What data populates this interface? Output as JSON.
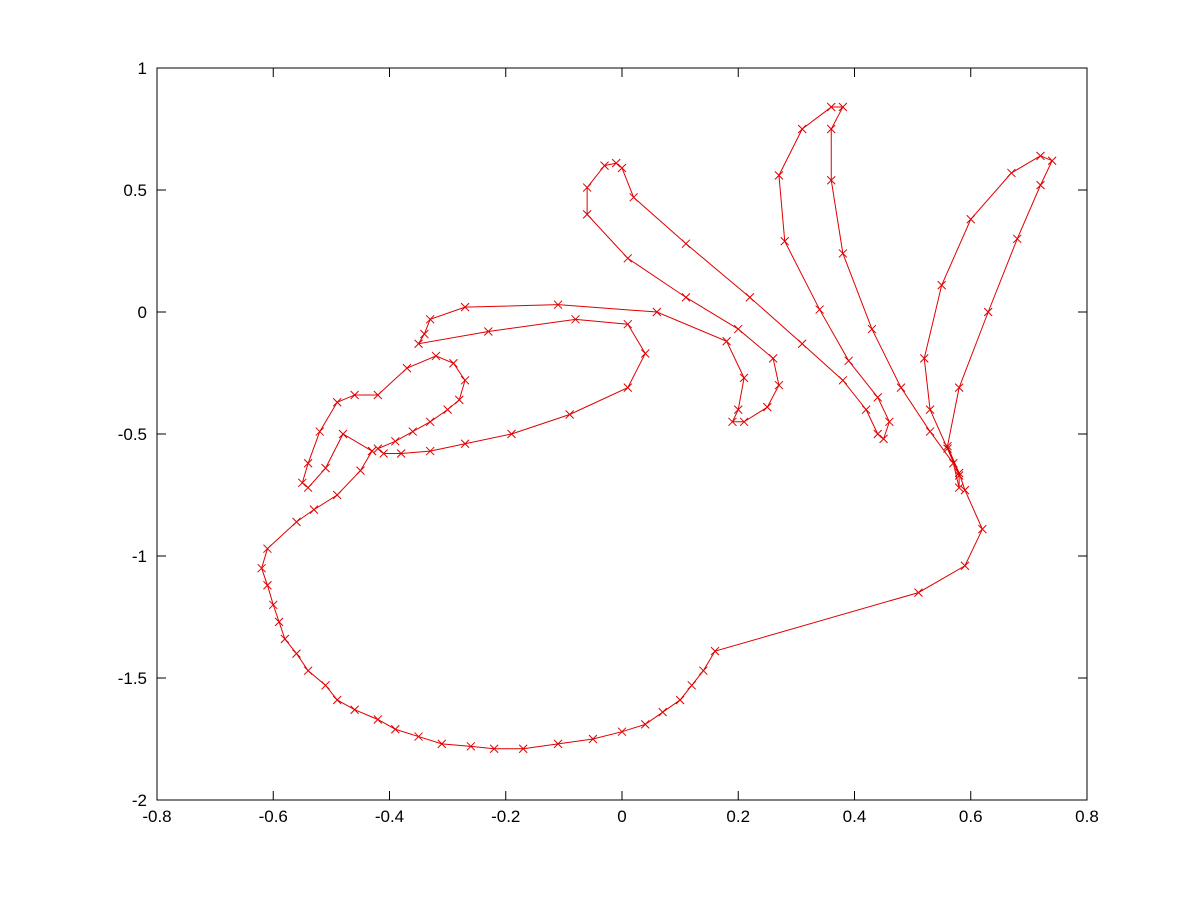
{
  "chart_data": {
    "type": "line",
    "marker": "x",
    "color": "#e00000",
    "x": [
      -0.43,
      -0.48,
      -0.51,
      -0.54,
      -0.55,
      -0.54,
      -0.52,
      -0.49,
      -0.46,
      -0.42,
      -0.37,
      -0.32,
      -0.29,
      -0.27,
      -0.28,
      -0.3,
      -0.33,
      -0.36,
      -0.39,
      -0.42,
      -0.41,
      -0.38,
      -0.33,
      -0.27,
      -0.19,
      -0.09,
      0.01,
      0.04,
      0.01,
      -0.08,
      -0.23,
      -0.35,
      -0.34,
      -0.33,
      -0.27,
      -0.11,
      0.06,
      0.18,
      0.21,
      0.2,
      0.19,
      0.21,
      0.25,
      0.27,
      0.26,
      0.2,
      0.11,
      0.01,
      -0.06,
      -0.06,
      -0.03,
      -0.01,
      0.0,
      0.02,
      0.11,
      0.22,
      0.31,
      0.38,
      0.42,
      0.44,
      0.45,
      0.46,
      0.44,
      0.39,
      0.34,
      0.28,
      0.27,
      0.31,
      0.36,
      0.38,
      0.36,
      0.36,
      0.38,
      0.43,
      0.48,
      0.53,
      0.57,
      0.58,
      0.58,
      0.56,
      0.53,
      0.52,
      0.55,
      0.6,
      0.67,
      0.72,
      0.74,
      0.72,
      0.68,
      0.63,
      0.58,
      0.56,
      0.58,
      0.59,
      0.62,
      0.59,
      0.51,
      0.16,
      0.14,
      0.12,
      0.1,
      0.07,
      0.04,
      0.0,
      -0.05,
      -0.11,
      -0.17,
      -0.22,
      -0.26,
      -0.31,
      -0.35,
      -0.39,
      -0.42,
      -0.46,
      -0.49,
      -0.51,
      -0.54,
      -0.56,
      -0.58,
      -0.59,
      -0.6,
      -0.61,
      -0.62,
      -0.61,
      -0.56,
      -0.53,
      -0.49,
      -0.45,
      -0.43
    ],
    "values": [
      -0.57,
      -0.5,
      -0.64,
      -0.72,
      -0.7,
      -0.62,
      -0.49,
      -0.37,
      -0.34,
      -0.34,
      -0.23,
      -0.18,
      -0.21,
      -0.28,
      -0.36,
      -0.4,
      -0.45,
      -0.49,
      -0.53,
      -0.56,
      -0.58,
      -0.58,
      -0.57,
      -0.54,
      -0.5,
      -0.42,
      -0.31,
      -0.17,
      -0.05,
      -0.03,
      -0.08,
      -0.13,
      -0.09,
      -0.03,
      0.02,
      0.03,
      0.0,
      -0.12,
      -0.27,
      -0.4,
      -0.45,
      -0.45,
      -0.39,
      -0.3,
      -0.19,
      -0.07,
      0.06,
      0.22,
      0.4,
      0.51,
      0.6,
      0.61,
      0.59,
      0.47,
      0.28,
      0.06,
      -0.13,
      -0.28,
      -0.4,
      -0.5,
      -0.52,
      -0.45,
      -0.35,
      -0.2,
      0.01,
      0.29,
      0.56,
      0.75,
      0.84,
      0.84,
      0.75,
      0.54,
      0.24,
      -0.07,
      -0.31,
      -0.49,
      -0.62,
      -0.72,
      -0.67,
      -0.56,
      -0.4,
      -0.19,
      0.11,
      0.38,
      0.57,
      0.64,
      0.62,
      0.52,
      0.3,
      0.0,
      -0.31,
      -0.55,
      -0.66,
      -0.73,
      -0.89,
      -1.04,
      -1.15,
      -1.39,
      -1.47,
      -1.53,
      -1.59,
      -1.64,
      -1.69,
      -1.72,
      -1.75,
      -1.77,
      -1.79,
      -1.79,
      -1.78,
      -1.77,
      -1.74,
      -1.71,
      -1.67,
      -1.63,
      -1.59,
      -1.53,
      -1.47,
      -1.4,
      -1.34,
      -1.27,
      -1.2,
      -1.12,
      -1.05,
      -0.97,
      -0.86,
      -0.81,
      -0.75,
      -0.65,
      -0.57
    ],
    "xlim": [
      -0.8,
      0.8
    ],
    "xticks": [
      -0.8,
      -0.6,
      -0.4,
      -0.2,
      0,
      0.2,
      0.4,
      0.6,
      0.8
    ],
    "ylim": [
      -2,
      1
    ],
    "yticks": [
      -2,
      -1.5,
      -1,
      -0.5,
      0,
      0.5,
      1
    ],
    "grid": false
  }
}
